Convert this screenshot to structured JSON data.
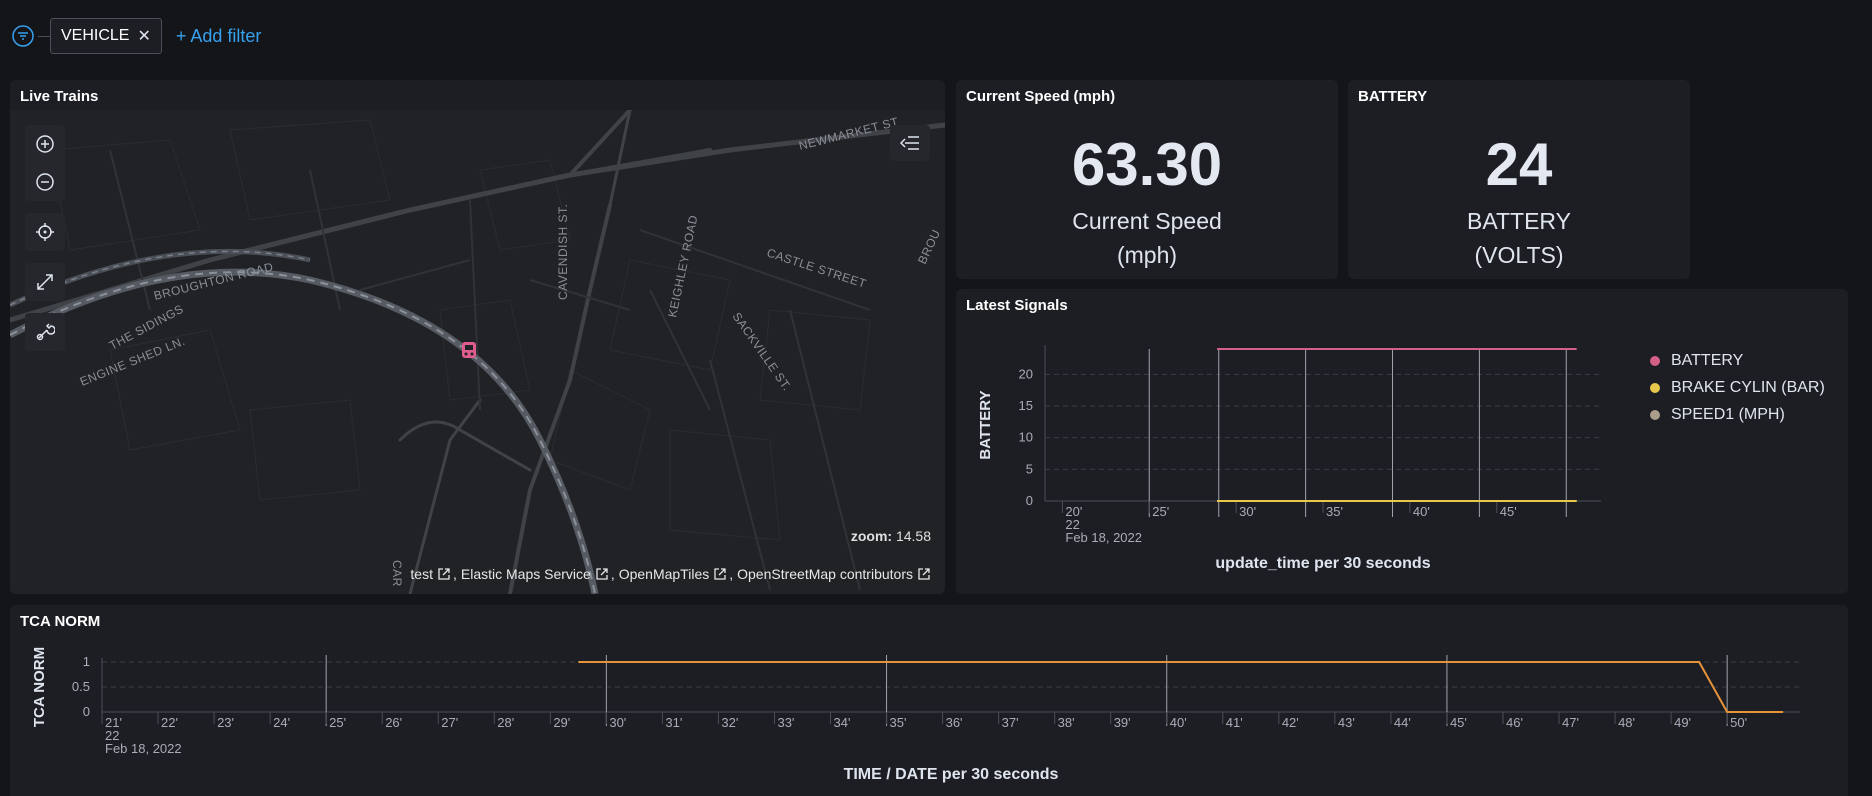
{
  "filter_bar": {
    "icon": "filter-icon",
    "pill_label": "VEHICLE",
    "pill_remove_icon": "close-icon",
    "add_filter_label": "+ Add filter"
  },
  "map_panel": {
    "title": "Live Trains",
    "controls": [
      "zoom-in-icon",
      "zoom-out-icon",
      "fit-to-data-icon",
      "fullscreen-icon",
      "tools-icon"
    ],
    "layers_icon": "layers-collapse-icon",
    "zoom_label": "zoom:",
    "zoom_value": "14.58",
    "attribution": [
      "test",
      "Elastic Maps Service",
      "OpenMapTiles",
      "OpenStreetMap contributors"
    ],
    "street_labels": [
      "NEWMARKET ST",
      "BROUGHTON ROAD",
      "THE SIDINGS",
      "ENGINE SHED LN.",
      "CAVENDISH ST.",
      "KEIGHLEY ROAD",
      "CASTLE STREET",
      "SACKVILLE ST.",
      "BROU",
      "CAR"
    ],
    "marker_icon": "train-marker-icon"
  },
  "speed_panel": {
    "title": "Current Speed (mph)",
    "value": "63.30",
    "label_line1": "Current Speed",
    "label_line2": "(mph)"
  },
  "battery_panel": {
    "title": "BATTERY",
    "value": "24",
    "label_line1": "BATTERY",
    "label_line2": "(VOLTS)"
  },
  "signals_panel": {
    "title": "Latest Signals",
    "legend": [
      {
        "name": "BATTERY",
        "color": "#d36086"
      },
      {
        "name": "BRAKE CYLIN (BAR)",
        "color": "#e7c84a"
      },
      {
        "name": "SPEED1 (MPH)",
        "color": "#aa9d8a"
      }
    ]
  },
  "tca_panel": {
    "title": "TCA NORM"
  },
  "chart_data": [
    {
      "type": "line",
      "title": "Latest Signals",
      "ylabel": "BATTERY",
      "xlabel": "update_time per 30 seconds",
      "x_ticks": [
        "20'",
        "25'",
        "30'",
        "35'",
        "40'",
        "45'"
      ],
      "x_sub_label": "22",
      "x_date_label": "Feb 18, 2022",
      "y_ticks": [
        "0",
        "5",
        "10",
        "15",
        "20"
      ],
      "ylim": [
        0,
        24
      ],
      "x_range": [
        19,
        51
      ],
      "grid": true,
      "legend_position": "right",
      "series": [
        {
          "name": "BATTERY",
          "color": "#d36086",
          "x": [
            28.9,
            49.6
          ],
          "y": [
            24,
            24
          ]
        },
        {
          "name": "BRAKE CYLIN (BAR)",
          "color": "#e7c84a",
          "x": [
            28.9,
            49.6
          ],
          "y": [
            0,
            0
          ]
        },
        {
          "name": "SPEED1 (MPH)",
          "color": "#aa9d8a",
          "x": [
            28.9,
            49.6
          ],
          "y": [
            0,
            0
          ]
        }
      ],
      "spikes_x": [
        25,
        29,
        34,
        39,
        44,
        49
      ]
    },
    {
      "type": "line",
      "title": "TCA NORM",
      "ylabel": "TCA NORM",
      "xlabel": "TIME / DATE per 30 seconds",
      "x_ticks": [
        "21'",
        "22'",
        "23'",
        "24'",
        "25'",
        "26'",
        "27'",
        "28'",
        "29'",
        "30'",
        "31'",
        "32'",
        "33'",
        "34'",
        "35'",
        "36'",
        "37'",
        "38'",
        "39'",
        "40'",
        "41'",
        "42'",
        "43'",
        "44'",
        "45'",
        "46'",
        "47'",
        "48'",
        "49'",
        "50'"
      ],
      "x_sub_label": "22",
      "x_date_label": "Feb 18, 2022",
      "y_ticks": [
        "0",
        "0.5",
        "1"
      ],
      "ylim": [
        0,
        1
      ],
      "x_range": [
        21,
        51.3
      ],
      "grid": true,
      "series": [
        {
          "name": "TCA NORM",
          "color": "#e7933a",
          "x": [
            29.5,
            49.5,
            50.0,
            51.0
          ],
          "y": [
            1,
            1,
            0,
            0
          ]
        }
      ],
      "spikes_x": [
        25,
        30,
        35,
        40,
        45,
        50
      ]
    }
  ]
}
